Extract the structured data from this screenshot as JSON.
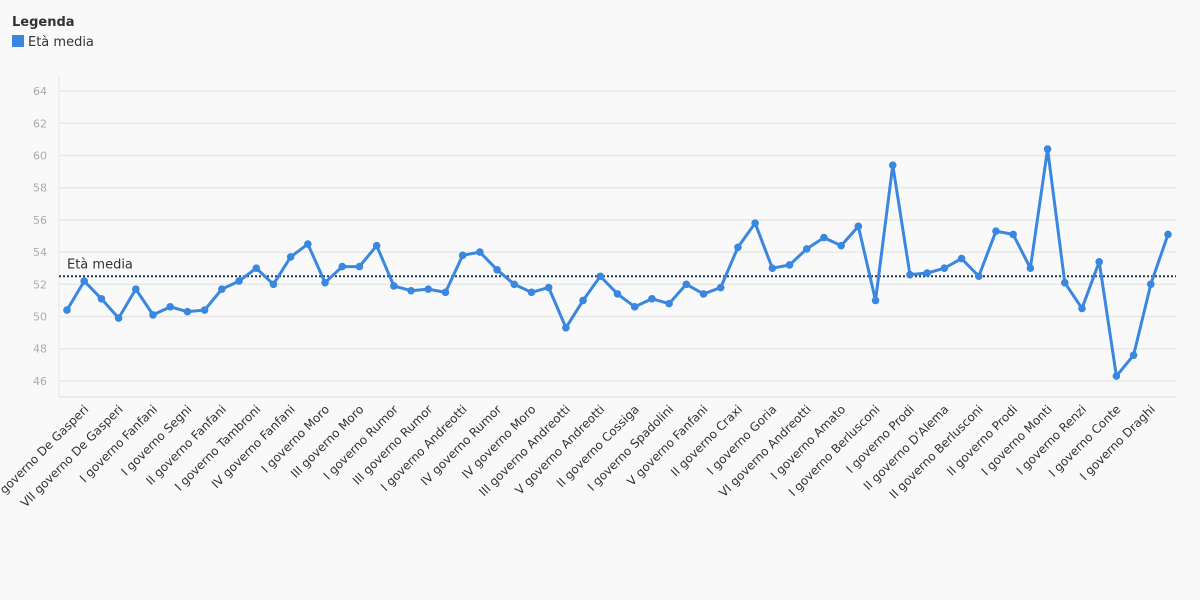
{
  "chart_data": {
    "type": "line",
    "legend_title": "Legenda",
    "categories": [
      null,
      "V governo De Gasperi",
      null,
      "VII governo De Gasperi",
      null,
      "I governo Fanfani",
      null,
      "I governo Segni",
      null,
      "II governo Fanfani",
      null,
      "I governo Tambroni",
      null,
      "IV governo Fanfani",
      null,
      "I governo Moro",
      null,
      "III governo Moro",
      null,
      "I governo Rumor",
      null,
      "III governo Rumor",
      null,
      "I governo Andreotti",
      null,
      "IV governo Rumor",
      null,
      "IV governo Moro",
      null,
      "III governo Andreotti",
      null,
      "V governo Andreotti",
      null,
      "II governo Cossiga",
      null,
      "I governo Spadolini",
      null,
      "V governo Fanfani",
      null,
      "II governo Craxi",
      null,
      "I governo Goria",
      null,
      "VI governo Andreotti",
      null,
      "I governo Amato",
      null,
      "I governo Berlusconi",
      null,
      "I governo Prodi",
      null,
      "II governo D'Alema",
      null,
      "II governo Berlusconi",
      null,
      "II governo Prodi",
      null,
      "I governo Monti",
      null,
      "I governo Renzi",
      null,
      "I governo Conte",
      null,
      "I governo Draghi",
      null
    ],
    "series": [
      {
        "name": "Età media",
        "color": "#3a87e0",
        "values": [
          50.4,
          52.2,
          51.1,
          49.9,
          51.7,
          50.1,
          50.6,
          50.3,
          50.4,
          51.7,
          52.2,
          53.0,
          52.0,
          53.7,
          54.5,
          52.1,
          53.1,
          53.1,
          54.4,
          51.9,
          51.6,
          51.7,
          51.5,
          53.8,
          54.0,
          52.9,
          52.0,
          51.5,
          51.8,
          49.3,
          51.0,
          52.5,
          51.4,
          50.6,
          51.1,
          50.8,
          52.0,
          51.4,
          51.8,
          54.3,
          55.8,
          53.0,
          53.2,
          54.2,
          54.9,
          54.4,
          55.6,
          51.0,
          59.4,
          52.6,
          52.7,
          53.0,
          53.6,
          52.5,
          55.3,
          55.1,
          53.0,
          60.4,
          52.1,
          50.5,
          53.4,
          46.3,
          47.6,
          52.0,
          55.1
        ]
      }
    ],
    "reference_line": {
      "label": "Età media",
      "value": 52.5,
      "color": "#1f3b57"
    },
    "ylim": [
      45,
      65
    ],
    "yticks": [
      46,
      48,
      50,
      52,
      54,
      56,
      58,
      60,
      62,
      64
    ],
    "grid": true
  }
}
